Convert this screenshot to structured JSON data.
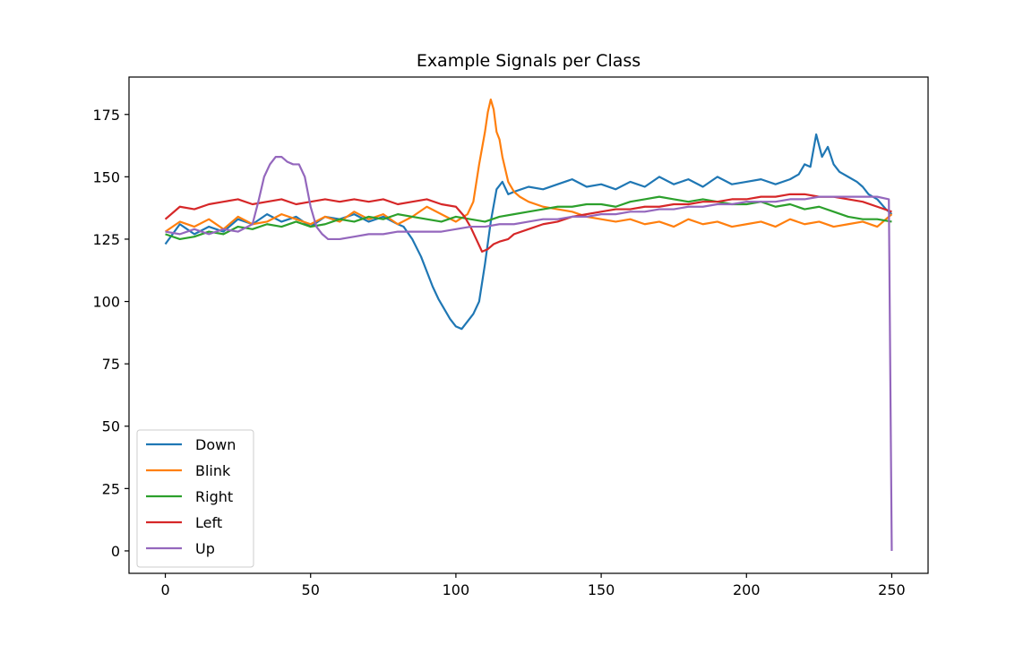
{
  "chart_data": {
    "type": "line",
    "title": "Example Signals per Class",
    "xlabel": "",
    "ylabel": "",
    "xlim": [
      -12.5,
      262.5
    ],
    "ylim": [
      -9,
      190
    ],
    "xticks": [
      0,
      50,
      100,
      150,
      200,
      250
    ],
    "yticks": [
      0,
      25,
      50,
      75,
      100,
      125,
      150,
      175
    ],
    "grid": false,
    "legend_position": "lower-left",
    "series": [
      {
        "name": "Down",
        "color": "#1f77b4",
        "x": [
          0,
          5,
          10,
          15,
          20,
          25,
          30,
          35,
          40,
          45,
          50,
          55,
          60,
          65,
          70,
          75,
          80,
          82,
          85,
          88,
          90,
          92,
          94,
          96,
          98,
          100,
          102,
          104,
          106,
          108,
          110,
          112,
          114,
          116,
          118,
          120,
          125,
          130,
          135,
          140,
          145,
          150,
          155,
          160,
          165,
          170,
          175,
          180,
          185,
          190,
          195,
          200,
          205,
          210,
          215,
          218,
          220,
          222,
          224,
          226,
          228,
          230,
          232,
          235,
          238,
          240,
          242,
          245,
          248,
          250
        ],
        "y": [
          123,
          131,
          127,
          130,
          128,
          133,
          131,
          135,
          132,
          134,
          130,
          134,
          133,
          135,
          132,
          134,
          131,
          130,
          125,
          118,
          112,
          106,
          101,
          97,
          93,
          90,
          89,
          92,
          95,
          100,
          115,
          132,
          145,
          148,
          143,
          144,
          146,
          145,
          147,
          149,
          146,
          147,
          145,
          148,
          146,
          150,
          147,
          149,
          146,
          150,
          147,
          148,
          149,
          147,
          149,
          151,
          155,
          154,
          167,
          158,
          162,
          155,
          152,
          150,
          148,
          146,
          143,
          141,
          137,
          135
        ]
      },
      {
        "name": "Blink",
        "color": "#ff7f0e",
        "x": [
          0,
          5,
          10,
          15,
          20,
          25,
          30,
          35,
          40,
          45,
          50,
          55,
          60,
          65,
          70,
          75,
          80,
          85,
          90,
          95,
          100,
          104,
          106,
          108,
          110,
          111,
          112,
          113,
          114,
          115,
          116,
          118,
          120,
          122,
          125,
          130,
          135,
          140,
          145,
          150,
          155,
          160,
          165,
          170,
          175,
          180,
          185,
          190,
          195,
          200,
          205,
          210,
          215,
          220,
          225,
          230,
          235,
          240,
          245,
          250
        ],
        "y": [
          128,
          132,
          130,
          133,
          129,
          134,
          131,
          132,
          135,
          133,
          131,
          134,
          132,
          136,
          133,
          135,
          131,
          134,
          138,
          135,
          132,
          135,
          140,
          155,
          168,
          176,
          181,
          177,
          168,
          165,
          158,
          148,
          144,
          142,
          140,
          138,
          137,
          136,
          134,
          133,
          132,
          133,
          131,
          132,
          130,
          133,
          131,
          132,
          130,
          131,
          132,
          130,
          133,
          131,
          132,
          130,
          131,
          132,
          130,
          135
        ]
      },
      {
        "name": "Right",
        "color": "#2ca02c",
        "x": [
          0,
          5,
          10,
          15,
          20,
          25,
          30,
          35,
          40,
          45,
          50,
          55,
          60,
          65,
          70,
          75,
          80,
          85,
          90,
          95,
          100,
          105,
          110,
          115,
          120,
          125,
          130,
          135,
          140,
          145,
          150,
          155,
          160,
          165,
          170,
          175,
          180,
          185,
          190,
          195,
          200,
          205,
          210,
          215,
          220,
          225,
          230,
          235,
          240,
          245,
          250
        ],
        "y": [
          127,
          125,
          126,
          128,
          127,
          130,
          129,
          131,
          130,
          132,
          130,
          131,
          133,
          132,
          134,
          133,
          135,
          134,
          133,
          132,
          134,
          133,
          132,
          134,
          135,
          136,
          137,
          138,
          138,
          139,
          139,
          138,
          140,
          141,
          142,
          141,
          140,
          141,
          140,
          139,
          139,
          140,
          138,
          139,
          137,
          138,
          136,
          134,
          133,
          133,
          132
        ]
      },
      {
        "name": "Left",
        "color": "#d62728",
        "x": [
          0,
          5,
          10,
          15,
          20,
          25,
          30,
          35,
          40,
          45,
          50,
          55,
          60,
          65,
          70,
          75,
          80,
          85,
          90,
          95,
          100,
          103,
          105,
          107,
          109,
          111,
          113,
          115,
          118,
          120,
          125,
          130,
          135,
          140,
          145,
          150,
          155,
          160,
          165,
          170,
          175,
          180,
          185,
          190,
          195,
          200,
          205,
          210,
          215,
          220,
          225,
          230,
          235,
          240,
          245,
          250
        ],
        "y": [
          133,
          138,
          137,
          139,
          140,
          141,
          139,
          140,
          141,
          139,
          140,
          141,
          140,
          141,
          140,
          141,
          139,
          140,
          141,
          139,
          138,
          134,
          130,
          125,
          120,
          121,
          123,
          124,
          125,
          127,
          129,
          131,
          132,
          134,
          135,
          136,
          137,
          137,
          138,
          138,
          139,
          139,
          140,
          140,
          141,
          141,
          142,
          142,
          143,
          143,
          142,
          142,
          141,
          140,
          138,
          136
        ]
      },
      {
        "name": "Up",
        "color": "#9467bd",
        "x": [
          0,
          5,
          10,
          15,
          20,
          25,
          30,
          32,
          34,
          36,
          38,
          40,
          42,
          44,
          46,
          48,
          50,
          52,
          54,
          56,
          60,
          65,
          70,
          75,
          80,
          85,
          90,
          95,
          100,
          105,
          110,
          115,
          120,
          125,
          130,
          135,
          140,
          145,
          150,
          155,
          160,
          165,
          170,
          175,
          180,
          185,
          190,
          195,
          200,
          205,
          210,
          215,
          220,
          225,
          230,
          235,
          240,
          245,
          249,
          250
        ],
        "y": [
          128,
          127,
          129,
          127,
          129,
          128,
          131,
          140,
          150,
          155,
          158,
          158,
          156,
          155,
          155,
          150,
          138,
          130,
          127,
          125,
          125,
          126,
          127,
          127,
          128,
          128,
          128,
          128,
          129,
          130,
          130,
          131,
          131,
          132,
          133,
          133,
          134,
          134,
          135,
          135,
          136,
          136,
          137,
          137,
          138,
          138,
          139,
          139,
          140,
          140,
          140,
          141,
          141,
          142,
          142,
          142,
          142,
          142,
          141,
          0
        ]
      }
    ]
  }
}
